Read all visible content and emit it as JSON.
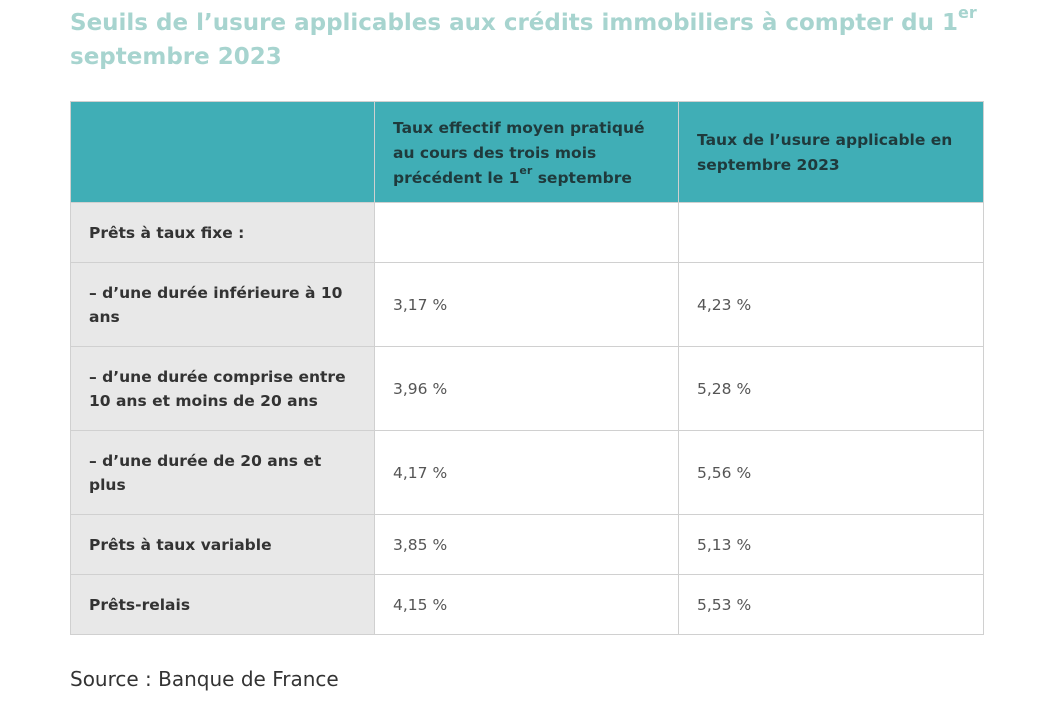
{
  "title": {
    "main": "Seuils de l’usure applicables aux crédits immobiliers à compter du 1",
    "sup": "er",
    "end": "septembre 2023"
  },
  "table": {
    "headers": [
      {
        "text": "",
        "sup": "",
        "after": ""
      },
      {
        "text": "Taux effectif moyen pratiqué au cours des trois mois précédent le 1",
        "sup": "er",
        "after": " septembre"
      },
      {
        "text": "Taux de l’usure applicable en septembre 2023",
        "sup": "",
        "after": ""
      }
    ],
    "rows": [
      {
        "label": "Prêts à taux fixe :",
        "taux_moyen": "",
        "taux_usure": ""
      },
      {
        "label": "– d’une durée inférieure à 10 ans",
        "taux_moyen": "3,17 %",
        "taux_usure": "4,23 %"
      },
      {
        "label": "– d’une durée comprise entre 10 ans et moins de 20 ans",
        "taux_moyen": "3,96 %",
        "taux_usure": "5,28 %"
      },
      {
        "label": "– d’une durée de 20 ans et plus",
        "taux_moyen": "4,17 %",
        "taux_usure": "5,56 %"
      },
      {
        "label": "Prêts à taux variable",
        "taux_moyen": "3,85 %",
        "taux_usure": "5,13 %"
      },
      {
        "label": "Prêts-relais",
        "taux_moyen": "4,15 %",
        "taux_usure": "5,53 %"
      }
    ]
  },
  "source": "Source : Banque de France",
  "colors": {
    "title": "#a7d4cf",
    "header_bg": "#40aeb6",
    "label_bg": "#e8e8e8",
    "border": "#d0d0d0"
  }
}
